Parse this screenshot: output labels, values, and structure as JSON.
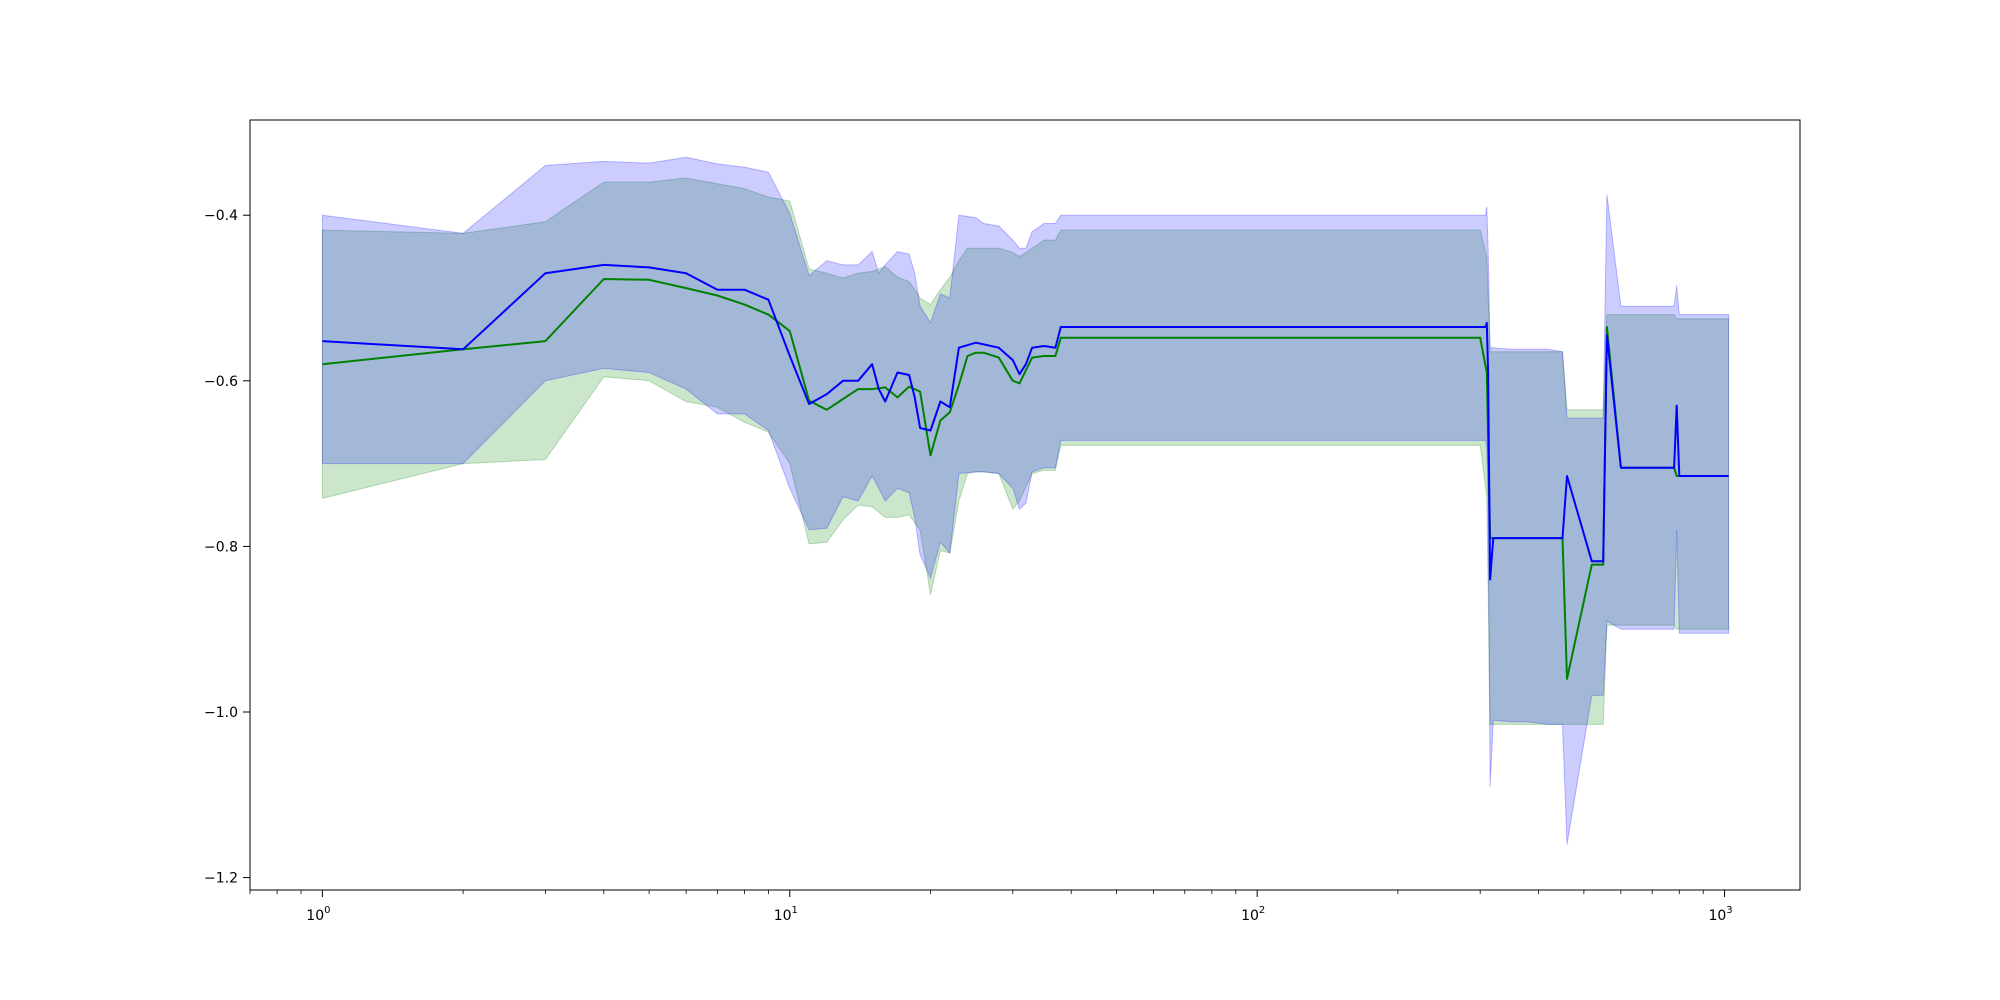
{
  "chart_data": {
    "type": "area",
    "title": "",
    "xlabel": "",
    "ylabel": "",
    "x_scale": "log",
    "xlim": [
      0.7,
      1450
    ],
    "ylim": [
      -1.215,
      -0.285
    ],
    "grid": false,
    "legend": "none",
    "x_ticks": [
      {
        "value": 1,
        "base": "10",
        "exp": "0"
      },
      {
        "value": 10,
        "base": "10",
        "exp": "1"
      },
      {
        "value": 100,
        "base": "10",
        "exp": "2"
      },
      {
        "value": 1000,
        "base": "10",
        "exp": "3"
      }
    ],
    "y_ticks": [
      {
        "value": -0.4,
        "label": "−0.4"
      },
      {
        "value": -0.6,
        "label": "−0.6"
      },
      {
        "value": -0.8,
        "label": "−0.8"
      },
      {
        "value": -1.0,
        "label": "−1.0"
      },
      {
        "value": -1.2,
        "label": "−1.2"
      }
    ],
    "series": [
      {
        "color": "#008000",
        "band_color": "#008000",
        "band_opacity": 0.2,
        "x": [
          1,
          2,
          3,
          4,
          5,
          6,
          7,
          8,
          9,
          10,
          11,
          12,
          13,
          14,
          15,
          16,
          17,
          18,
          19,
          20,
          21,
          22,
          23,
          24,
          25,
          26,
          28,
          30,
          31,
          33,
          35,
          37,
          38,
          100,
          200,
          300,
          310,
          315,
          320,
          350,
          380,
          420,
          450,
          460,
          520,
          540,
          550,
          560,
          600,
          700,
          780,
          790,
          800,
          850,
          1000,
          1020
        ],
        "y": [
          -0.58,
          -0.562,
          -0.552,
          -0.477,
          -0.478,
          -0.488,
          -0.497,
          -0.508,
          -0.52,
          -0.54,
          -0.624,
          -0.635,
          -0.622,
          -0.61,
          -0.61,
          -0.608,
          -0.62,
          -0.607,
          -0.613,
          -0.69,
          -0.648,
          -0.638,
          -0.605,
          -0.57,
          -0.566,
          -0.566,
          -0.572,
          -0.6,
          -0.603,
          -0.572,
          -0.57,
          -0.57,
          -0.548,
          -0.548,
          -0.548,
          -0.548,
          -0.59,
          -0.79,
          -0.79,
          -0.79,
          -0.79,
          -0.79,
          -0.79,
          -0.96,
          -0.822,
          -0.822,
          -0.822,
          -0.535,
          -0.705,
          -0.705,
          -0.705,
          -0.715,
          -0.715,
          -0.715,
          -0.715,
          -0.715
        ],
        "upper": [
          -0.418,
          -0.422,
          -0.408,
          -0.36,
          -0.36,
          -0.355,
          -0.362,
          -0.368,
          -0.378,
          -0.383,
          -0.465,
          -0.47,
          -0.476,
          -0.47,
          -0.468,
          -0.462,
          -0.475,
          -0.48,
          -0.5,
          -0.508,
          -0.49,
          -0.475,
          -0.455,
          -0.44,
          -0.44,
          -0.44,
          -0.44,
          -0.445,
          -0.45,
          -0.44,
          -0.43,
          -0.43,
          -0.418,
          -0.418,
          -0.418,
          -0.418,
          -0.45,
          -0.565,
          -0.565,
          -0.565,
          -0.565,
          -0.565,
          -0.565,
          -0.635,
          -0.635,
          -0.635,
          -0.635,
          -0.52,
          -0.52,
          -0.52,
          -0.52,
          -0.525,
          -0.525,
          -0.525,
          -0.525,
          -0.525
        ],
        "lower": [
          -0.742,
          -0.7,
          -0.695,
          -0.595,
          -0.6,
          -0.625,
          -0.632,
          -0.65,
          -0.662,
          -0.7,
          -0.797,
          -0.795,
          -0.768,
          -0.75,
          -0.752,
          -0.765,
          -0.765,
          -0.762,
          -0.78,
          -0.858,
          -0.805,
          -0.808,
          -0.745,
          -0.712,
          -0.71,
          -0.71,
          -0.712,
          -0.755,
          -0.745,
          -0.712,
          -0.708,
          -0.708,
          -0.678,
          -0.678,
          -0.678,
          -0.678,
          -0.74,
          -1.015,
          -1.015,
          -1.015,
          -1.015,
          -1.015,
          -1.015,
          -1.015,
          -1.015,
          -1.015,
          -1.015,
          -0.895,
          -0.895,
          -0.895,
          -0.895,
          -0.9,
          -0.9,
          -0.9,
          -0.9,
          -0.9
        ]
      },
      {
        "color": "#0000ff",
        "band_color": "#0000ff",
        "band_opacity": 0.2,
        "x": [
          1,
          2,
          3,
          4,
          5,
          6,
          7,
          8,
          9,
          10,
          11,
          12,
          13,
          14,
          15,
          15.5,
          16,
          17,
          18,
          18.5,
          19,
          20,
          21,
          22,
          23,
          25,
          26,
          28,
          30,
          31,
          32,
          33,
          35,
          37,
          38,
          100,
          200,
          308,
          310,
          312,
          315,
          320,
          350,
          380,
          420,
          450,
          460,
          520,
          540,
          550,
          560,
          600,
          700,
          780,
          790,
          800,
          850,
          1000,
          1020
        ],
        "y": [
          -0.552,
          -0.562,
          -0.47,
          -0.46,
          -0.463,
          -0.47,
          -0.49,
          -0.49,
          -0.502,
          -0.57,
          -0.628,
          -0.616,
          -0.6,
          -0.6,
          -0.58,
          -0.61,
          -0.625,
          -0.59,
          -0.593,
          -0.62,
          -0.657,
          -0.66,
          -0.625,
          -0.632,
          -0.56,
          -0.554,
          -0.556,
          -0.56,
          -0.575,
          -0.592,
          -0.58,
          -0.56,
          -0.558,
          -0.56,
          -0.535,
          -0.535,
          -0.535,
          -0.535,
          -0.53,
          -0.59,
          -0.84,
          -0.79,
          -0.79,
          -0.79,
          -0.79,
          -0.79,
          -0.715,
          -0.818,
          -0.818,
          -0.818,
          -0.545,
          -0.705,
          -0.705,
          -0.705,
          -0.63,
          -0.715,
          -0.715,
          -0.715,
          -0.715
        ],
        "upper": [
          -0.4,
          -0.422,
          -0.34,
          -0.335,
          -0.337,
          -0.33,
          -0.338,
          -0.342,
          -0.348,
          -0.398,
          -0.473,
          -0.455,
          -0.46,
          -0.46,
          -0.444,
          -0.47,
          -0.46,
          -0.444,
          -0.447,
          -0.47,
          -0.51,
          -0.53,
          -0.495,
          -0.5,
          -0.4,
          -0.403,
          -0.41,
          -0.413,
          -0.43,
          -0.44,
          -0.44,
          -0.42,
          -0.41,
          -0.41,
          -0.4,
          -0.4,
          -0.4,
          -0.4,
          -0.39,
          -0.44,
          -0.56,
          -0.56,
          -0.562,
          -0.562,
          -0.562,
          -0.565,
          -0.645,
          -0.645,
          -0.645,
          -0.645,
          -0.375,
          -0.51,
          -0.51,
          -0.51,
          -0.485,
          -0.52,
          -0.52,
          -0.52,
          -0.52
        ],
        "lower": [
          -0.7,
          -0.7,
          -0.6,
          -0.585,
          -0.59,
          -0.61,
          -0.64,
          -0.64,
          -0.66,
          -0.73,
          -0.78,
          -0.778,
          -0.74,
          -0.745,
          -0.715,
          -0.73,
          -0.745,
          -0.73,
          -0.735,
          -0.765,
          -0.81,
          -0.838,
          -0.795,
          -0.808,
          -0.712,
          -0.71,
          -0.71,
          -0.712,
          -0.73,
          -0.755,
          -0.748,
          -0.71,
          -0.705,
          -0.705,
          -0.672,
          -0.672,
          -0.672,
          -0.672,
          -0.68,
          -0.75,
          -1.09,
          -1.01,
          -1.012,
          -1.012,
          -1.015,
          -1.015,
          -1.16,
          -0.98,
          -0.98,
          -0.98,
          -0.89,
          -0.9,
          -0.9,
          -0.9,
          -0.78,
          -0.905,
          -0.905,
          -0.905,
          -0.905
        ]
      }
    ]
  }
}
